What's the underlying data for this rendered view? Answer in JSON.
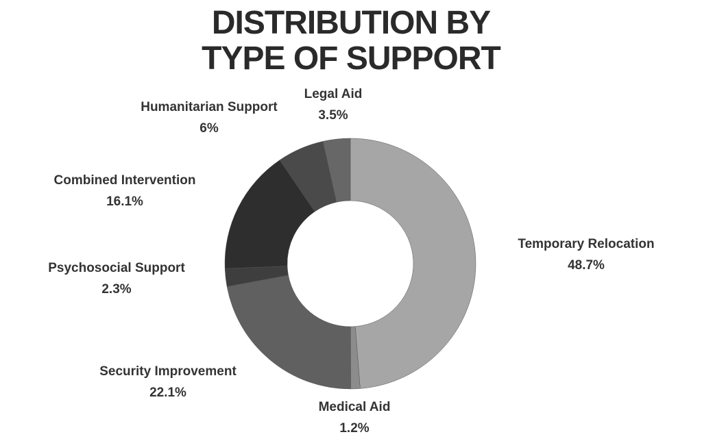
{
  "chart_data": {
    "type": "donut",
    "title": "DISTRIBUTION BY TYPE OF SUPPORT",
    "categories": [
      "Temporary Relocation",
      "Medical Aid",
      "Security Improvement",
      "Psychosocial Support",
      "Combined Intervention",
      "Humanitarian Support",
      "Legal Aid"
    ],
    "values": [
      48.7,
      1.2,
      22.1,
      2.3,
      16.1,
      6,
      3.5
    ],
    "value_labels": [
      "48.7%",
      "1.2%",
      "22.1%",
      "2.3%",
      "16.1%",
      "6%",
      "3.5%"
    ],
    "colors": [
      "#a6a6a6",
      "#8c8c8c",
      "#606060",
      "#3e3e3e",
      "#2e2e2e",
      "#4a4a4a",
      "#676767"
    ]
  }
}
